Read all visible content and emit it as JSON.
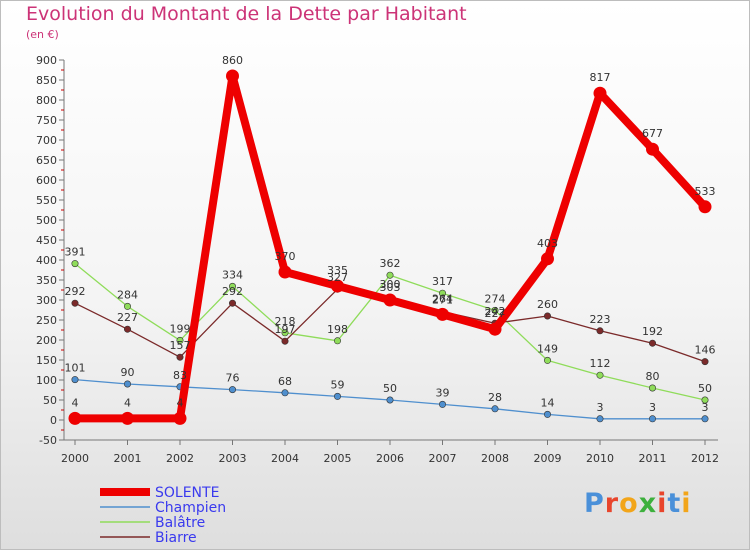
{
  "title": "Evolution du Montant de la Dette par Habitant",
  "subtitle": "(en €)",
  "logo_text": "Proxiti",
  "chart_data": {
    "type": "line",
    "title": "Evolution du Montant de la Dette par Habitant",
    "ylabel": "(en €)",
    "x": [
      "2000",
      "2001",
      "2002",
      "2003",
      "2004",
      "2005",
      "2006",
      "2007",
      "2008",
      "2009",
      "2010",
      "2011",
      "2012"
    ],
    "ylim": [
      -50,
      900
    ],
    "yticks": [
      -50,
      0,
      50,
      100,
      150,
      200,
      250,
      300,
      350,
      400,
      450,
      500,
      550,
      600,
      650,
      700,
      750,
      800,
      850,
      900
    ],
    "grid": false,
    "legend_position": "bottom-left",
    "series": [
      {
        "name": "SOLENTE",
        "color": "#ee0000",
        "values": [
          4,
          4,
          4,
          860,
          370,
          335,
          300,
          264,
          227,
          403,
          817,
          677,
          533
        ],
        "labels": [
          "4",
          "4",
          "4",
          "860",
          "370",
          "335",
          "300",
          "264",
          "227",
          "403",
          "817",
          "677",
          "533"
        ]
      },
      {
        "name": "Champien",
        "color": "#4f8fce",
        "values": [
          101,
          90,
          83,
          76,
          68,
          59,
          50,
          39,
          28,
          14,
          3,
          3,
          3
        ],
        "labels": [
          "101",
          "90",
          "83",
          "76",
          "68",
          "59",
          "50",
          "39",
          "28",
          "14",
          "3",
          "3",
          "3"
        ]
      },
      {
        "name": "Balâtre",
        "color": "#8fdc5a",
        "values": [
          391,
          284,
          199,
          334,
          218,
          198,
          362,
          317,
          274,
          149,
          112,
          80,
          50
        ],
        "labels": [
          "391",
          "284",
          "199",
          "334",
          "218",
          "198",
          "362",
          "317",
          "274",
          "149",
          "112",
          "80",
          "50"
        ]
      },
      {
        "name": "Biarre",
        "color": "#7b2a2a",
        "values": [
          292,
          227,
          157,
          292,
          197,
          327,
          303,
          271,
          242,
          260,
          223,
          192,
          146
        ],
        "labels": [
          "292",
          "227",
          "157",
          "292",
          "197",
          "327",
          "303",
          "271",
          "242",
          "260",
          "223",
          "192",
          "146"
        ]
      }
    ]
  }
}
